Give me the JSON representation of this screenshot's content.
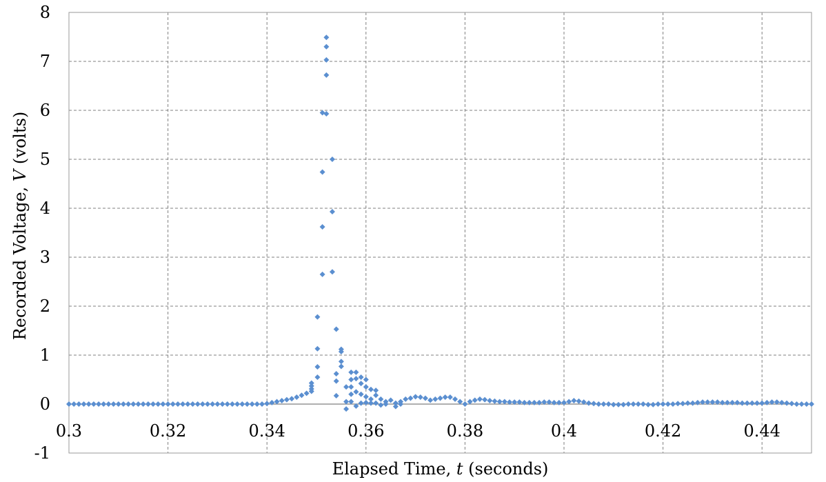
{
  "chart_data": {
    "type": "scatter",
    "title": "",
    "xlabel": "Elapsed Time, ",
    "xlabel_var": "t",
    "xlabel_unit": " (seconds)",
    "ylabel": "Recorded Voltage, ",
    "ylabel_var": "V",
    "ylabel_unit": " (volts)",
    "xlim": [
      0.3,
      0.45
    ],
    "ylim": [
      -1,
      8
    ],
    "x_ticks": [
      0.3,
      0.32,
      0.34,
      0.36,
      0.38,
      0.4,
      0.42,
      0.44
    ],
    "x_tick_labels": [
      "0.3",
      "0.32",
      "0.34",
      "0.36",
      "0.38",
      "0.4",
      "0.42",
      "0.44"
    ],
    "y_ticks": [
      -1,
      0,
      1,
      2,
      3,
      4,
      5,
      6,
      7,
      8
    ],
    "y_tick_labels": [
      "-1",
      "0",
      "1",
      "2",
      "3",
      "4",
      "5",
      "6",
      "7",
      "8"
    ],
    "grid": true,
    "legend": "none",
    "marker": "diamond",
    "series_color": "#5b8fd0",
    "series": [
      {
        "points": [
          [
            0.3,
            0.0
          ],
          [
            0.301,
            0.0
          ],
          [
            0.302,
            0.0
          ],
          [
            0.303,
            0.0
          ],
          [
            0.304,
            0.0
          ],
          [
            0.305,
            0.0
          ],
          [
            0.306,
            0.0
          ],
          [
            0.307,
            0.0
          ],
          [
            0.308,
            0.0
          ],
          [
            0.309,
            0.0
          ],
          [
            0.31,
            0.0
          ],
          [
            0.311,
            0.0
          ],
          [
            0.312,
            0.0
          ],
          [
            0.313,
            0.0
          ],
          [
            0.314,
            0.0
          ],
          [
            0.315,
            0.0
          ],
          [
            0.316,
            0.0
          ],
          [
            0.317,
            0.0
          ],
          [
            0.318,
            0.0
          ],
          [
            0.319,
            0.0
          ],
          [
            0.32,
            0.0
          ],
          [
            0.321,
            0.0
          ],
          [
            0.322,
            0.0
          ],
          [
            0.323,
            0.0
          ],
          [
            0.324,
            0.0
          ],
          [
            0.325,
            0.0
          ],
          [
            0.326,
            0.0
          ],
          [
            0.327,
            0.0
          ],
          [
            0.328,
            0.0
          ],
          [
            0.329,
            0.0
          ],
          [
            0.33,
            0.0
          ],
          [
            0.331,
            0.0
          ],
          [
            0.332,
            0.0
          ],
          [
            0.333,
            0.0
          ],
          [
            0.334,
            0.0
          ],
          [
            0.335,
            0.0
          ],
          [
            0.336,
            0.0
          ],
          [
            0.337,
            0.0
          ],
          [
            0.338,
            0.0
          ],
          [
            0.339,
            0.0
          ],
          [
            0.34,
            0.01
          ],
          [
            0.341,
            0.03
          ],
          [
            0.342,
            0.05
          ],
          [
            0.343,
            0.07
          ],
          [
            0.344,
            0.09
          ],
          [
            0.345,
            0.11
          ],
          [
            0.346,
            0.14
          ],
          [
            0.347,
            0.18
          ],
          [
            0.348,
            0.22
          ],
          [
            0.349,
            0.26
          ],
          [
            0.349,
            0.31
          ],
          [
            0.349,
            0.37
          ],
          [
            0.349,
            0.43
          ],
          [
            0.3502,
            0.55
          ],
          [
            0.3502,
            0.76
          ],
          [
            0.3502,
            1.13
          ],
          [
            0.3502,
            1.78
          ],
          [
            0.3512,
            2.65
          ],
          [
            0.3512,
            3.62
          ],
          [
            0.3512,
            4.74
          ],
          [
            0.3512,
            5.95
          ],
          [
            0.352,
            5.93
          ],
          [
            0.352,
            6.72
          ],
          [
            0.352,
            7.03
          ],
          [
            0.352,
            7.3
          ],
          [
            0.352,
            7.49
          ],
          [
            0.3532,
            5.0
          ],
          [
            0.3532,
            3.93
          ],
          [
            0.3532,
            2.7
          ],
          [
            0.354,
            1.53
          ],
          [
            0.354,
            0.62
          ],
          [
            0.354,
            0.47
          ],
          [
            0.354,
            0.17
          ],
          [
            0.355,
            1.12
          ],
          [
            0.355,
            1.07
          ],
          [
            0.355,
            0.87
          ],
          [
            0.355,
            0.77
          ],
          [
            0.356,
            0.35
          ],
          [
            0.356,
            0.05
          ],
          [
            0.356,
            -0.1
          ],
          [
            0.357,
            0.65
          ],
          [
            0.357,
            0.5
          ],
          [
            0.357,
            0.35
          ],
          [
            0.357,
            0.2
          ],
          [
            0.357,
            0.05
          ],
          [
            0.358,
            0.65
          ],
          [
            0.358,
            0.52
          ],
          [
            0.358,
            0.25
          ],
          [
            0.358,
            -0.04
          ],
          [
            0.359,
            0.55
          ],
          [
            0.359,
            0.42
          ],
          [
            0.359,
            0.2
          ],
          [
            0.359,
            0.02
          ],
          [
            0.36,
            0.5
          ],
          [
            0.36,
            0.35
          ],
          [
            0.36,
            0.15
          ],
          [
            0.36,
            0.03
          ],
          [
            0.361,
            0.3
          ],
          [
            0.361,
            0.1
          ],
          [
            0.361,
            0.02
          ],
          [
            0.362,
            0.28
          ],
          [
            0.362,
            0.18
          ],
          [
            0.362,
            0.02
          ],
          [
            0.363,
            0.1
          ],
          [
            0.363,
            -0.02
          ],
          [
            0.364,
            0.05
          ],
          [
            0.364,
            0.0
          ],
          [
            0.365,
            0.08
          ],
          [
            0.366,
            -0.05
          ],
          [
            0.366,
            0.02
          ],
          [
            0.367,
            0.05
          ],
          [
            0.367,
            0.0
          ],
          [
            0.368,
            0.1
          ],
          [
            0.369,
            0.12
          ],
          [
            0.37,
            0.15
          ],
          [
            0.371,
            0.14
          ],
          [
            0.372,
            0.12
          ],
          [
            0.373,
            0.08
          ],
          [
            0.374,
            0.1
          ],
          [
            0.375,
            0.12
          ],
          [
            0.376,
            0.14
          ],
          [
            0.377,
            0.14
          ],
          [
            0.378,
            0.1
          ],
          [
            0.379,
            0.05
          ],
          [
            0.38,
            0.0
          ],
          [
            0.381,
            0.05
          ],
          [
            0.382,
            0.08
          ],
          [
            0.383,
            0.1
          ],
          [
            0.384,
            0.09
          ],
          [
            0.385,
            0.07
          ],
          [
            0.386,
            0.06
          ],
          [
            0.387,
            0.05
          ],
          [
            0.388,
            0.05
          ],
          [
            0.389,
            0.04
          ],
          [
            0.39,
            0.04
          ],
          [
            0.391,
            0.04
          ],
          [
            0.392,
            0.03
          ],
          [
            0.393,
            0.03
          ],
          [
            0.394,
            0.03
          ],
          [
            0.395,
            0.03
          ],
          [
            0.396,
            0.04
          ],
          [
            0.397,
            0.04
          ],
          [
            0.398,
            0.03
          ],
          [
            0.399,
            0.03
          ],
          [
            0.4,
            0.03
          ],
          [
            0.401,
            0.05
          ],
          [
            0.402,
            0.07
          ],
          [
            0.403,
            0.06
          ],
          [
            0.404,
            0.04
          ],
          [
            0.405,
            0.02
          ],
          [
            0.406,
            0.01
          ],
          [
            0.407,
            0.0
          ],
          [
            0.408,
            0.0
          ],
          [
            0.409,
            0.0
          ],
          [
            0.41,
            -0.01
          ],
          [
            0.411,
            -0.01
          ],
          [
            0.412,
            -0.01
          ],
          [
            0.413,
            0.0
          ],
          [
            0.414,
            0.0
          ],
          [
            0.415,
            0.0
          ],
          [
            0.416,
            0.0
          ],
          [
            0.417,
            -0.01
          ],
          [
            0.418,
            -0.01
          ],
          [
            0.419,
            0.0
          ],
          [
            0.42,
            0.0
          ],
          [
            0.421,
            0.0
          ],
          [
            0.422,
            0.0
          ],
          [
            0.423,
            0.01
          ],
          [
            0.424,
            0.01
          ],
          [
            0.425,
            0.02
          ],
          [
            0.426,
            0.02
          ],
          [
            0.427,
            0.03
          ],
          [
            0.428,
            0.04
          ],
          [
            0.429,
            0.04
          ],
          [
            0.43,
            0.04
          ],
          [
            0.431,
            0.04
          ],
          [
            0.432,
            0.03
          ],
          [
            0.433,
            0.03
          ],
          [
            0.434,
            0.03
          ],
          [
            0.435,
            0.03
          ],
          [
            0.436,
            0.02
          ],
          [
            0.437,
            0.02
          ],
          [
            0.438,
            0.02
          ],
          [
            0.439,
            0.02
          ],
          [
            0.44,
            0.02
          ],
          [
            0.441,
            0.03
          ],
          [
            0.442,
            0.04
          ],
          [
            0.443,
            0.04
          ],
          [
            0.444,
            0.03
          ],
          [
            0.445,
            0.02
          ],
          [
            0.446,
            0.01
          ],
          [
            0.447,
            0.0
          ],
          [
            0.448,
            0.0
          ],
          [
            0.449,
            0.0
          ],
          [
            0.45,
            0.0
          ]
        ]
      }
    ]
  }
}
